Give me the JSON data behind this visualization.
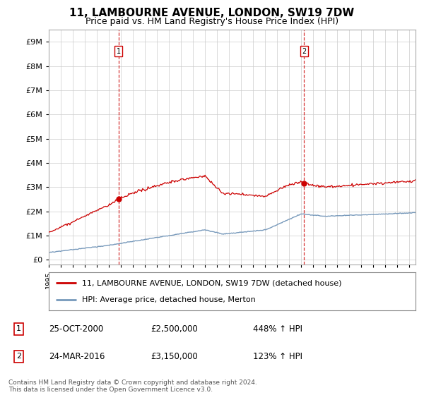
{
  "title": "11, LAMBOURNE AVENUE, LONDON, SW19 7DW",
  "subtitle": "Price paid vs. HM Land Registry's House Price Index (HPI)",
  "title_fontsize": 11,
  "subtitle_fontsize": 9,
  "background_color": "#ffffff",
  "grid_color": "#cccccc",
  "plot_bg_color": "#ffffff",
  "sale1_date": 2000.81,
  "sale1_price": 2500000,
  "sale1_label": "1",
  "sale1_date_str": "25-OCT-2000",
  "sale1_price_str": "£2,500,000",
  "sale1_hpi_str": "448% ↑ HPI",
  "sale2_date": 2016.23,
  "sale2_price": 3150000,
  "sale2_label": "2",
  "sale2_date_str": "24-MAR-2016",
  "sale2_price_str": "£3,150,000",
  "sale2_hpi_str": "123% ↑ HPI",
  "ylim_max": 9500000,
  "ylim_min": -200000,
  "xlim_min": 1995,
  "xlim_max": 2025.5,
  "red_line_color": "#cc0000",
  "blue_line_color": "#7799bb",
  "vline_color": "#cc0000",
  "footer_text": "Contains HM Land Registry data © Crown copyright and database right 2024.\nThis data is licensed under the Open Government Licence v3.0.",
  "legend1_label": "11, LAMBOURNE AVENUE, LONDON, SW19 7DW (detached house)",
  "legend2_label": "HPI: Average price, detached house, Merton"
}
